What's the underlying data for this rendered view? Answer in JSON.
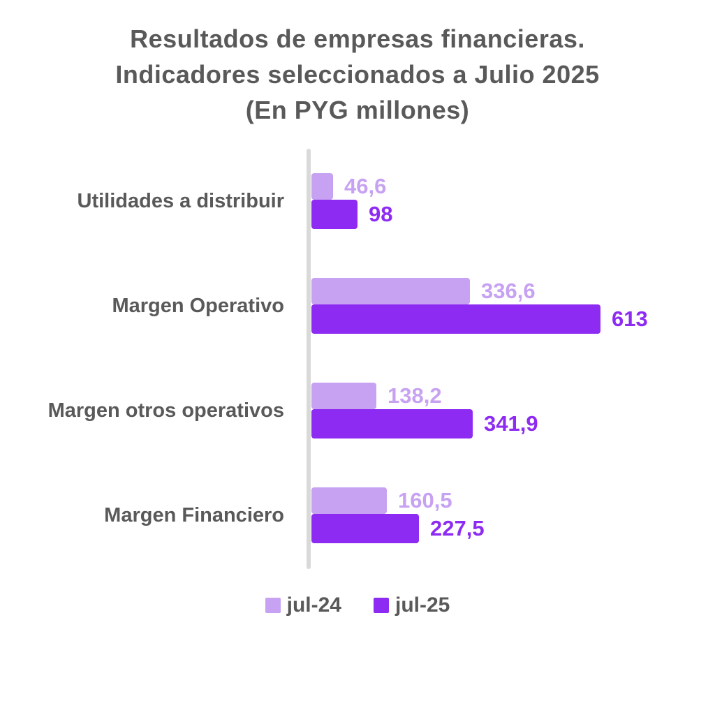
{
  "title": {
    "line1": "Resultados de empresas financieras.",
    "line2": "Indicadores seleccionados a Julio 2025",
    "line3": "(En PYG millones)"
  },
  "colors": {
    "title_text": "#595959",
    "category_text": "#595959",
    "legend_text": "#595959",
    "axis_line": "#d9d9d9",
    "series_jul24": "#c7a2f2",
    "series_jul25": "#8e2bf2",
    "background": "#ffffff"
  },
  "chart_data": {
    "type": "bar",
    "orientation": "horizontal",
    "title": "Resultados de empresas financieras. Indicadores seleccionados a Julio 2025 (En PYG millones)",
    "categories": [
      "Utilidades a distribuir",
      "Margen Operativo",
      "Margen otros operativos",
      "Margen Financiero"
    ],
    "series": [
      {
        "name": "jul-24",
        "color": "#c7a2f2",
        "values": [
          46.6,
          336.6,
          138.2,
          160.5
        ],
        "labels": [
          "46,6",
          "336,6",
          "138,2",
          "160,5"
        ]
      },
      {
        "name": "jul-25",
        "color": "#8e2bf2",
        "values": [
          98,
          613,
          341.9,
          227.5
        ],
        "labels": [
          "98",
          "613",
          "341,9",
          "227,5"
        ]
      }
    ],
    "xlim": [
      0,
      650
    ],
    "grid": false,
    "legend_position": "bottom",
    "value_labels": "outside-end"
  }
}
